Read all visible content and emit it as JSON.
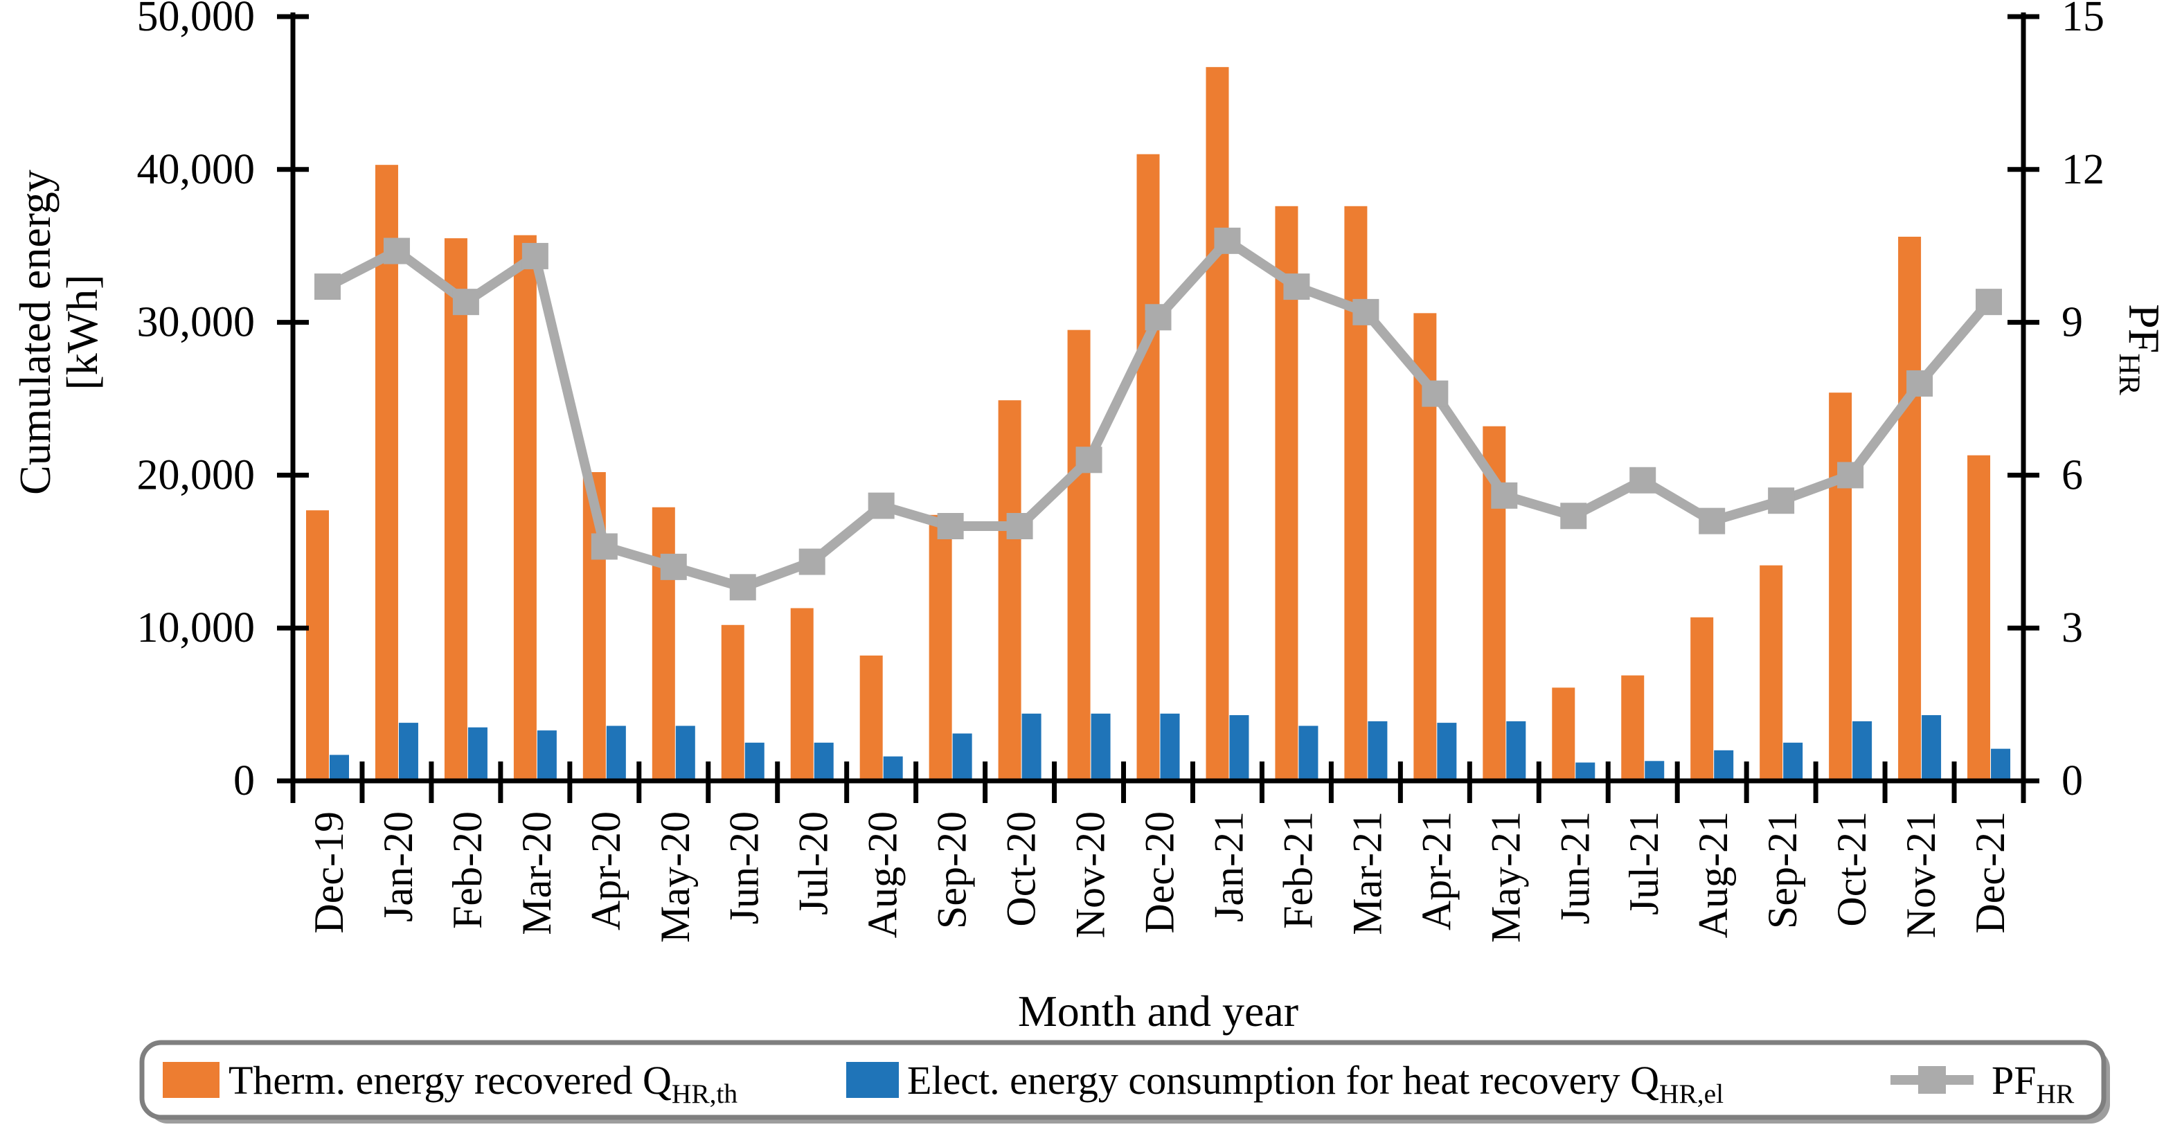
{
  "chart_data": {
    "type": "bar+line",
    "xlabel": "Month and year",
    "categories": [
      "Dec-19",
      "Jan-20",
      "Feb-20",
      "Mar-20",
      "Apr-20",
      "May-20",
      "Jun-20",
      "Jul-20",
      "Aug-20",
      "Sep-20",
      "Oct-20",
      "Nov-20",
      "Dec-20",
      "Jan-21",
      "Feb-21",
      "Mar-21",
      "Apr-21",
      "May-21",
      "Jun-21",
      "Jul-21",
      "Aug-21",
      "Sep-21",
      "Oct-21",
      "Nov-21",
      "Dec-21"
    ],
    "series": [
      {
        "name": "Therm. energy recovered Q_HR,th",
        "type": "bar",
        "axis": "left",
        "values": [
          17700,
          40300,
          35500,
          35700,
          20200,
          17900,
          10200,
          11300,
          8200,
          17400,
          24900,
          29500,
          41000,
          46700,
          37600,
          37600,
          30600,
          23200,
          6100,
          6900,
          10700,
          14100,
          25400,
          35600,
          21300
        ]
      },
      {
        "name": "Elect. energy consumption for heat recovery Q_HR,el",
        "type": "bar",
        "axis": "left",
        "values": [
          1700,
          3800,
          3500,
          3300,
          3600,
          3600,
          2500,
          2500,
          1600,
          3100,
          4400,
          4400,
          4400,
          4300,
          3600,
          3900,
          3800,
          3900,
          1200,
          1300,
          2000,
          2500,
          3900,
          4300,
          2100
        ]
      },
      {
        "name": "PF_HR",
        "type": "line",
        "axis": "right",
        "values": [
          9.7,
          10.4,
          9.4,
          10.3,
          4.6,
          4.2,
          3.8,
          4.3,
          5.4,
          5.0,
          5.0,
          6.3,
          9.1,
          10.6,
          9.7,
          9.2,
          7.6,
          5.6,
          5.2,
          5.9,
          5.1,
          5.5,
          6.0,
          7.8,
          9.4
        ]
      }
    ],
    "left_axis": {
      "title_line1": "Cumulated energy",
      "title_line2": "[kWh]",
      "min": 0,
      "max": 50000,
      "tick_step": 10000,
      "tick_labels": [
        "0",
        "10,000",
        "20,000",
        "30,000",
        "40,000",
        "50,000"
      ]
    },
    "right_axis": {
      "title_parts": [
        {
          "t": "PF",
          "sub": false
        },
        {
          "t": "HR",
          "sub": true
        }
      ],
      "min": 0,
      "max": 15,
      "tick_step": 3,
      "tick_labels": [
        "0",
        "3",
        "6",
        "9",
        "12",
        "15"
      ]
    },
    "legend": [
      {
        "swatch": "bar-orange",
        "parts": [
          {
            "t": "Therm. energy recovered Q",
            "sub": false
          },
          {
            "t": "HR,th",
            "sub": true
          }
        ]
      },
      {
        "swatch": "bar-blue",
        "parts": [
          {
            "t": "Elect. energy consumption for heat recovery Q",
            "sub": false
          },
          {
            "t": "HR,el",
            "sub": true
          }
        ]
      },
      {
        "swatch": "line-gray",
        "parts": [
          {
            "t": "PF",
            "sub": false
          },
          {
            "t": "HR",
            "sub": true
          }
        ]
      }
    ],
    "colors": {
      "thermal": "#ED7D31",
      "electric": "#1F74B8",
      "pf_line": "#ABABAB",
      "axis": "#000000",
      "legend_border": "#7F7F7F",
      "legend_shadow": "#9E9E9E"
    },
    "grid": "off",
    "legend_position": "bottom"
  }
}
